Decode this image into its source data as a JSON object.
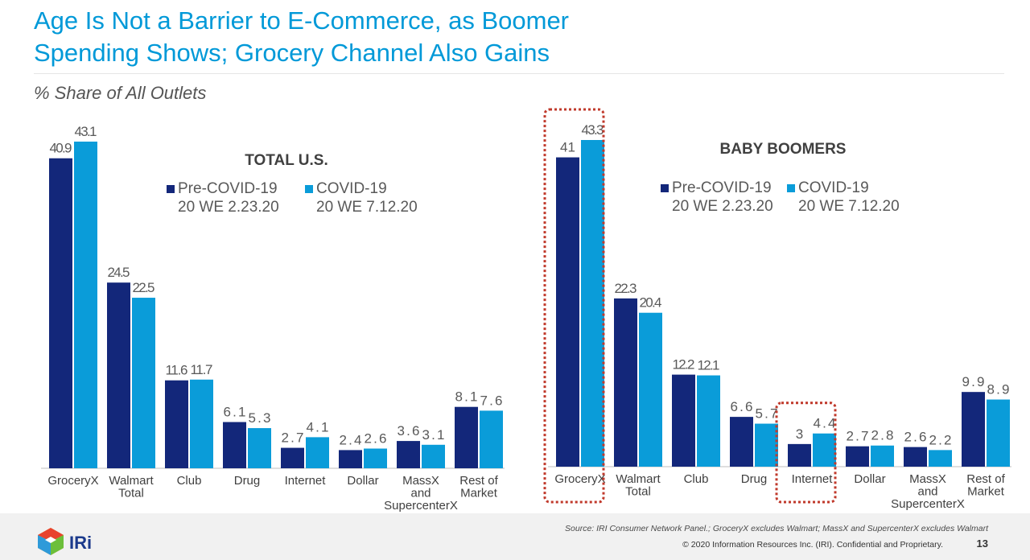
{
  "slide": {
    "title_line1": "Age Is Not a Barrier to E-Commerce, as Boomer",
    "title_line2": "Spending Shows; Grocery Channel Also Gains",
    "subtitle": "% Share of All Outlets",
    "source": "Source: IRI Consumer Network Panel.; GroceryX excludes Walmart; MassX and SupercenterX excludes Walmart",
    "copyright": "© 2020 Information Resources Inc. (IRI). Confidential and Proprietary.",
    "page_number": "13",
    "logo_text": "IRi"
  },
  "colors": {
    "pre_covid": "#13277a",
    "covid": "#0a9cd9",
    "title": "#0099d8",
    "highlight": "#c0392b"
  },
  "chart_data": [
    {
      "type": "bar",
      "title": "TOTAL U.S.",
      "categories": [
        "GroceryX",
        "Walmart Total",
        "Club",
        "Drug",
        "Internet",
        "Dollar",
        "MassX and SupercenterX",
        "Rest of Market"
      ],
      "category_lines": [
        [
          "GroceryX"
        ],
        [
          "Walmart",
          "Total"
        ],
        [
          "Club"
        ],
        [
          "Drug"
        ],
        [
          "Internet"
        ],
        [
          "Dollar"
        ],
        [
          "MassX",
          "and",
          "SupercenterX"
        ],
        [
          "Rest of",
          "Market"
        ]
      ],
      "series": [
        {
          "name": "Pre-COVID-19",
          "sub": "20 WE 2.23.20",
          "values": [
            40.9,
            24.5,
            11.6,
            6.1,
            2.7,
            2.4,
            3.6,
            8.1
          ]
        },
        {
          "name": "COVID-19",
          "sub": "20 WE 7.12.20",
          "values": [
            43.1,
            22.5,
            11.7,
            5.3,
            4.1,
            2.6,
            3.1,
            7.6
          ]
        }
      ],
      "ylim": [
        0,
        43.3
      ],
      "grid": false,
      "highlighted_categories": []
    },
    {
      "type": "bar",
      "title": "BABY BOOMERS",
      "categories": [
        "GroceryX",
        "Walmart Total",
        "Club",
        "Drug",
        "Internet",
        "Dollar",
        "MassX and SupercenterX",
        "Rest of Market"
      ],
      "category_lines": [
        [
          "GroceryX"
        ],
        [
          "Walmart",
          "Total"
        ],
        [
          "Club"
        ],
        [
          "Drug"
        ],
        [
          "Internet"
        ],
        [
          "Dollar"
        ],
        [
          "MassX",
          "and",
          "SupercenterX"
        ],
        [
          "Rest of",
          "Market"
        ]
      ],
      "series": [
        {
          "name": "Pre-COVID-19",
          "sub": "20 WE 2.23.20",
          "values": [
            41,
            22.3,
            12.2,
            6.6,
            3,
            2.7,
            2.6,
            9.9
          ]
        },
        {
          "name": "COVID-19",
          "sub": "20 WE 7.12.20",
          "values": [
            43.3,
            20.4,
            12.1,
            5.7,
            4.4,
            2.8,
            2.2,
            8.9
          ]
        }
      ],
      "ylim": [
        0,
        43.3
      ],
      "grid": false,
      "highlighted_categories": [
        "GroceryX",
        "Internet"
      ]
    }
  ]
}
